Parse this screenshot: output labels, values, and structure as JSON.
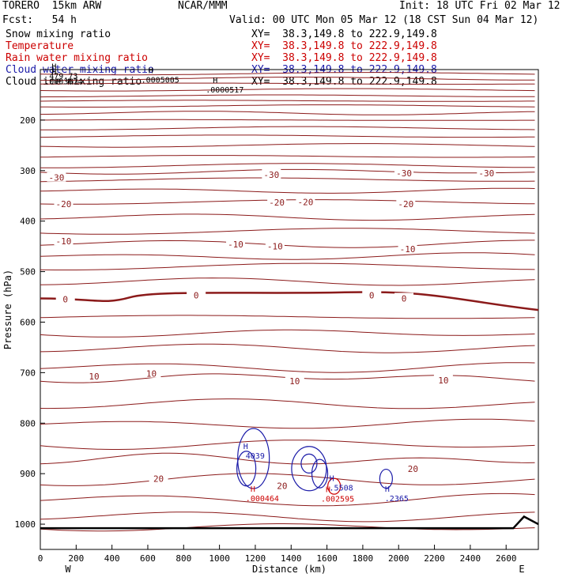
{
  "header": {
    "model": "TORERO  15km ARW",
    "center": "NCAR/MMM",
    "init": "Init: 18 UTC Fri 02 Mar 12",
    "fcst": "Fcst:   54 h",
    "valid": "Valid: 00 UTC Mon 05 Mar 12 (18 CST Sun 04 Mar 12)"
  },
  "legend": [
    {
      "label": "Snow mixing ratio",
      "xy": "XY=  38.3,149.8 to 222.9,149.8",
      "color": "#000000"
    },
    {
      "label": "Temperature",
      "xy": "XY=  38.3,149.8 to 222.9,149.8",
      "color": "#cc0000"
    },
    {
      "label": "Rain water mixing ratio",
      "xy": "XY=  38.3,149.8 to 222.9,149.8",
      "color": "#cc0000"
    },
    {
      "label": "Cloud water mixing ratio",
      "xy": "XY=  38.3,149.8 to 222.9,149.8",
      "color": "#1a1aa8"
    },
    {
      "label": "Cloud ice mixing ratio",
      "xy": "XY=  38.3,149.8 to 222.9,149.8",
      "color": "#000000"
    }
  ],
  "chart_data": {
    "type": "contour",
    "xlabel": "Distance (km)",
    "ylabel": "Pressure (hPa)",
    "xlim": [
      0,
      2780
    ],
    "ylim": [
      1050,
      100
    ],
    "x_ticks": [
      0,
      200,
      400,
      600,
      800,
      1000,
      1200,
      1400,
      1600,
      1800,
      2000,
      2200,
      2400,
      2600
    ],
    "y_ticks": [
      200,
      300,
      400,
      500,
      600,
      700,
      800,
      900,
      1000
    ],
    "west_label": "W",
    "east_label": "E",
    "temperature_labels": [
      {
        "text": "-30",
        "x": 90,
        "p": 314
      },
      {
        "text": "-30",
        "x": 1290,
        "p": 308
      },
      {
        "text": "-30",
        "x": 2030,
        "p": 305
      },
      {
        "text": "-30",
        "x": 2490,
        "p": 305
      },
      {
        "text": "-20",
        "x": 130,
        "p": 366
      },
      {
        "text": "-20",
        "x": 1320,
        "p": 363
      },
      {
        "text": "-20",
        "x": 1480,
        "p": 362
      },
      {
        "text": "-20",
        "x": 2040,
        "p": 366
      },
      {
        "text": "-10",
        "x": 130,
        "p": 440
      },
      {
        "text": "-10",
        "x": 1090,
        "p": 446
      },
      {
        "text": "-10",
        "x": 1310,
        "p": 450
      },
      {
        "text": "-10",
        "x": 2050,
        "p": 455
      },
      {
        "text": "0",
        "x": 140,
        "p": 555
      },
      {
        "text": "0",
        "x": 870,
        "p": 547
      },
      {
        "text": "0",
        "x": 1850,
        "p": 547
      },
      {
        "text": "0",
        "x": 2030,
        "p": 553
      },
      {
        "text": "10",
        "x": 300,
        "p": 707
      },
      {
        "text": "10",
        "x": 620,
        "p": 702
      },
      {
        "text": "10",
        "x": 1420,
        "p": 717
      },
      {
        "text": "10",
        "x": 2250,
        "p": 715
      },
      {
        "text": "20",
        "x": 660,
        "p": 910
      },
      {
        "text": "20",
        "x": 1350,
        "p": 924
      },
      {
        "text": "20",
        "x": 2080,
        "p": 890
      }
    ],
    "extrema_labels": [
      {
        "mark": "H",
        "value": "479.73",
        "x": 50,
        "p": 102,
        "color": "#000000"
      },
      {
        "mark": "H",
        "value": ".0003674",
        "x": 50,
        "p": 113,
        "color": "#000000"
      },
      {
        "mark": "H",
        "value": ".0005005",
        "x": 590,
        "p": 110,
        "color": "#000000"
      },
      {
        "mark": "H",
        "value": ".0000517",
        "x": 950,
        "p": 130,
        "color": "#000000"
      },
      {
        "mark": "H",
        "value": "4039",
        "x": 1120,
        "p": 854,
        "color": "#1a1aa8"
      },
      {
        "mark": "H",
        "value": ".000464",
        "x": 1160,
        "p": 939,
        "color": "#cc0000"
      },
      {
        "mark": "H",
        "value": ".002595",
        "x": 1580,
        "p": 940,
        "color": "#cc0000"
      },
      {
        "mark": "H",
        "value": ".5508",
        "x": 1600,
        "p": 918,
        "color": "#1a1aa8"
      },
      {
        "mark": "H",
        "value": ".2365",
        "x": 1910,
        "p": 939,
        "color": "#1a1aa8"
      }
    ]
  }
}
